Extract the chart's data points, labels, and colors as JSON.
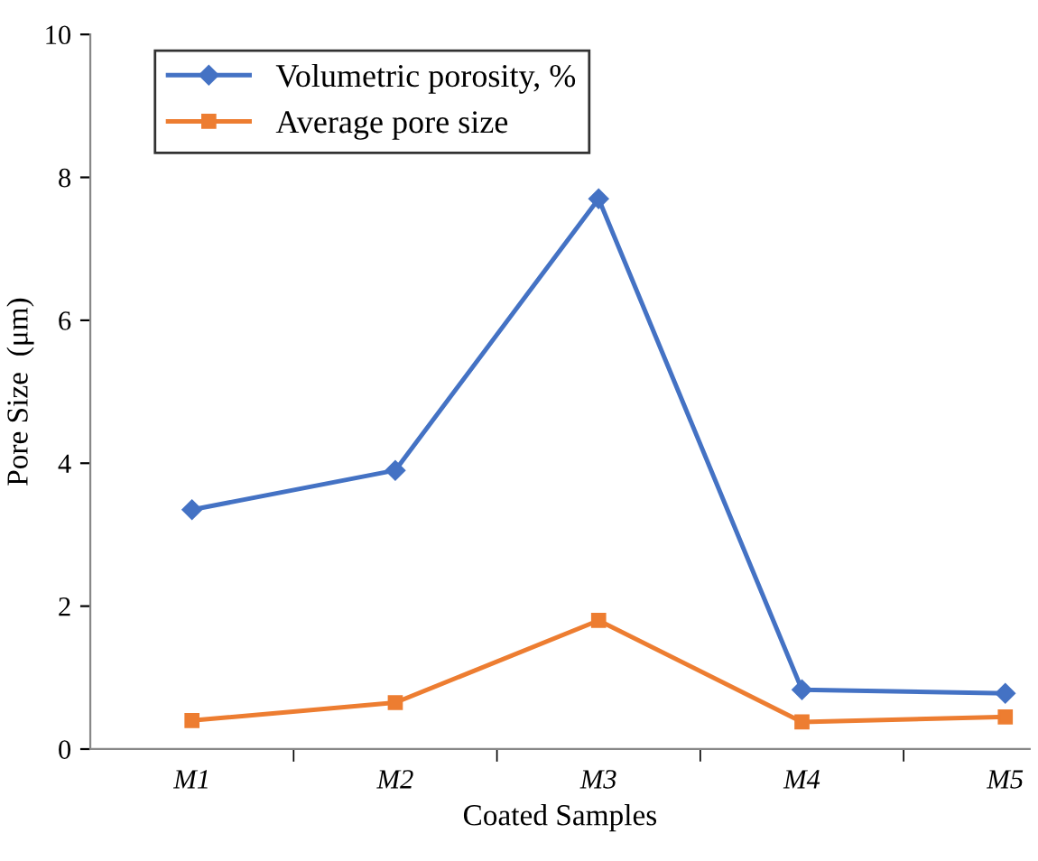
{
  "chart_data": {
    "type": "line",
    "xlabel": "Coated Samples",
    "ylabel": "Pore Size  (μm)",
    "categories": [
      "M1",
      "M2",
      "M3",
      "M4",
      "M5"
    ],
    "series": [
      {
        "name": "Volumetric porosity, %",
        "color": "#4472c4",
        "marker": "diamond",
        "values": [
          3.35,
          3.9,
          7.7,
          0.83,
          0.78
        ]
      },
      {
        "name": "Average pore size",
        "color": "#ed7d31",
        "marker": "square",
        "values": [
          0.4,
          0.65,
          1.8,
          0.38,
          0.45
        ]
      }
    ],
    "ylim": [
      0,
      10
    ],
    "yticks": [
      0,
      2,
      4,
      6,
      8,
      10
    ],
    "grid": false,
    "legend": "top"
  }
}
